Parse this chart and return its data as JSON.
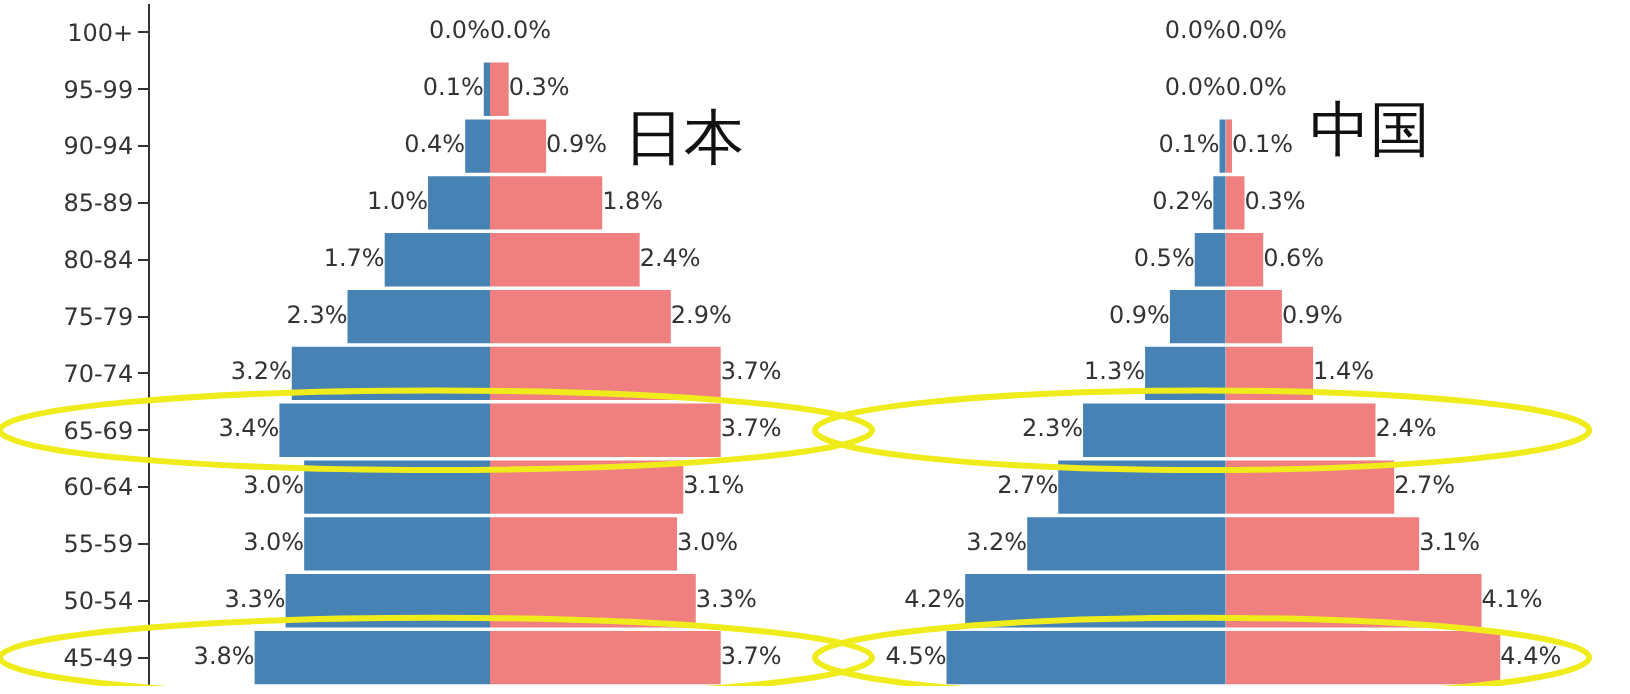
{
  "chart_data": [
    {
      "type": "bar",
      "orientation": "horizontal",
      "tick_labels": "y",
      "categories": [
        "100+",
        "95-99",
        "90-94",
        "85-89",
        "80-84",
        "75-79",
        "70-74",
        "65-69",
        "60-64",
        "55-59",
        "50-54",
        "45-49"
      ],
      "series": [
        {
          "color": "#4682b4",
          "values": [
            0.0,
            0.1,
            0.4,
            1.0,
            1.7,
            2.3,
            3.2,
            3.4,
            3.0,
            3.0,
            3.3,
            3.8
          ],
          "value_labels": [
            "0.0%",
            "0.1%",
            "0.4%",
            "1.0%",
            "1.7%",
            "2.3%",
            "3.2%",
            "3.4%",
            "3.0%",
            "3.0%",
            "3.3%",
            "3.8%"
          ]
        }
      ]
    },
    {
      "type": "bar",
      "orientation": "horizontal",
      "title": "日本",
      "tick_labels": false,
      "categories": [
        "100+",
        "95-99",
        "90-94",
        "85-89",
        "80-84",
        "75-79",
        "70-74",
        "65-69",
        "60-64",
        "55-59",
        "50-54",
        "45-49"
      ],
      "series": [
        {
          "color": "#f08080",
          "values": [
            0.0,
            0.3,
            0.9,
            1.8,
            2.4,
            2.9,
            3.7,
            3.7,
            3.1,
            3.0,
            3.3,
            3.7
          ],
          "value_labels": [
            "0.0%",
            "0.3%",
            "0.9%",
            "1.8%",
            "2.4%",
            "2.9%",
            "3.7%",
            "3.7%",
            "3.1%",
            "3.0%",
            "3.3%",
            "3.7%"
          ]
        }
      ]
    },
    {
      "type": "bar",
      "orientation": "horizontal",
      "tick_labels": false,
      "categories": [
        "100+",
        "95-99",
        "90-94",
        "85-89",
        "80-84",
        "75-79",
        "70-74",
        "65-69",
        "60-64",
        "55-59",
        "50-54",
        "45-49"
      ],
      "series": [
        {
          "color": "#4682b4",
          "values": [
            0.0,
            0.0,
            0.1,
            0.2,
            0.5,
            0.9,
            1.3,
            2.3,
            2.7,
            3.2,
            4.2,
            4.5
          ],
          "value_labels": [
            "0.0%",
            "0.0%",
            "0.1%",
            "0.2%",
            "0.5%",
            "0.9%",
            "1.3%",
            "2.3%",
            "2.7%",
            "3.2%",
            "4.2%",
            "4.5%"
          ]
        }
      ]
    },
    {
      "type": "bar",
      "orientation": "horizontal",
      "title": "中国",
      "tick_labels": false,
      "categories": [
        "100+",
        "95-99",
        "90-94",
        "85-89",
        "80-84",
        "75-79",
        "70-74",
        "65-69",
        "60-64",
        "55-59",
        "50-54",
        "45-49"
      ],
      "series": [
        {
          "color": "#f08080",
          "values": [
            0.0,
            0.0,
            0.1,
            0.3,
            0.6,
            0.9,
            1.4,
            2.4,
            2.7,
            3.1,
            4.1,
            4.4
          ],
          "value_labels": [
            "0.0%",
            "0.0%",
            "0.1%",
            "0.3%",
            "0.6%",
            "0.9%",
            "1.4%",
            "2.4%",
            "2.7%",
            "3.1%",
            "4.1%",
            "4.4%"
          ]
        }
      ]
    }
  ]
}
